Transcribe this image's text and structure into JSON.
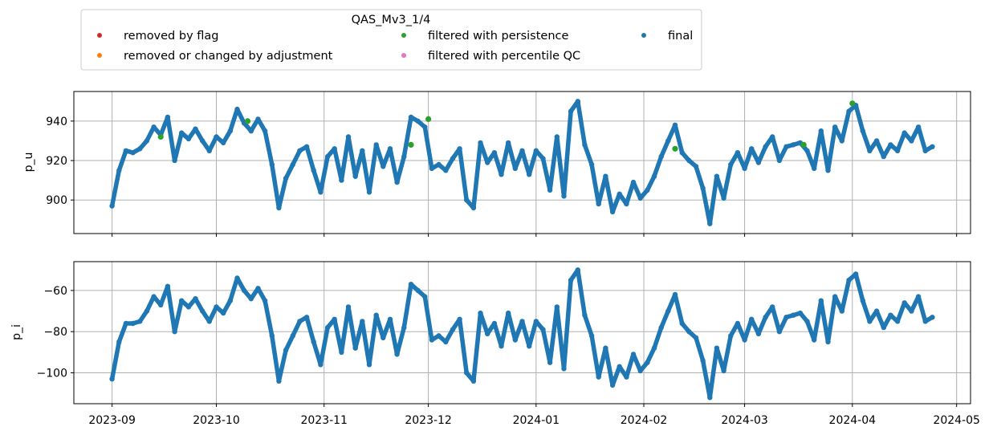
{
  "chart_data": {
    "type": "scatter",
    "legend": {
      "title": "QAS_Mv3_1/4",
      "placement": "top, above plots",
      "entries": [
        {
          "label": "removed by flag",
          "color": "#d62728"
        },
        {
          "label": "removed or changed by adjustment",
          "color": "#ff7f0e"
        },
        {
          "label": "filtered with persistence",
          "color": "#2ca02c"
        },
        {
          "label": "filtered with percentile QC",
          "color": "#e377c2"
        },
        {
          "label": "final",
          "color": "#1f77b4"
        }
      ]
    },
    "x_axis": {
      "type": "date",
      "range": [
        "2023-08-21",
        "2024-05-05"
      ],
      "ticks": [
        "2023-09",
        "2023-10",
        "2023-11",
        "2023-12",
        "2024-01",
        "2024-02",
        "2024-03",
        "2024-04",
        "2024-05"
      ],
      "tick_dates": [
        "2023-09-01",
        "2023-10-01",
        "2023-11-01",
        "2023-12-01",
        "2024-01-01",
        "2024-02-01",
        "2024-03-01",
        "2024-04-01",
        "2024-05-01"
      ],
      "grid": true,
      "shared": true
    },
    "panels": [
      {
        "ylabel": "p_u",
        "ylim": [
          883,
          955
        ],
        "yticks": [
          900,
          920,
          940
        ],
        "grid": true,
        "series": [
          {
            "name": "final",
            "color": "#1f77b4",
            "x": [
              "2023-09-01",
              "2023-09-03",
              "2023-09-05",
              "2023-09-07",
              "2023-09-09",
              "2023-09-11",
              "2023-09-13",
              "2023-09-15",
              "2023-09-17",
              "2023-09-19",
              "2023-09-21",
              "2023-09-23",
              "2023-09-25",
              "2023-09-27",
              "2023-09-29",
              "2023-10-01",
              "2023-10-03",
              "2023-10-05",
              "2023-10-07",
              "2023-10-09",
              "2023-10-11",
              "2023-10-13",
              "2023-10-15",
              "2023-10-17",
              "2023-10-19",
              "2023-10-21",
              "2023-10-23",
              "2023-10-25",
              "2023-10-27",
              "2023-10-29",
              "2023-10-31",
              "2023-11-02",
              "2023-11-04",
              "2023-11-06",
              "2023-11-08",
              "2023-11-10",
              "2023-11-12",
              "2023-11-14",
              "2023-11-16",
              "2023-11-18",
              "2023-11-20",
              "2023-11-22",
              "2023-11-24",
              "2023-11-26",
              "2023-11-28",
              "2023-11-30",
              "2023-12-02",
              "2023-12-04",
              "2023-12-06",
              "2023-12-08",
              "2023-12-10",
              "2023-12-12",
              "2023-12-14",
              "2023-12-16",
              "2023-12-18",
              "2023-12-20",
              "2023-12-22",
              "2023-12-24",
              "2023-12-26",
              "2023-12-28",
              "2023-12-30",
              "2024-01-01",
              "2024-01-03",
              "2024-01-05",
              "2024-01-07",
              "2024-01-09",
              "2024-01-11",
              "2024-01-13",
              "2024-01-15",
              "2024-01-17",
              "2024-01-19",
              "2024-01-21",
              "2024-01-23",
              "2024-01-25",
              "2024-01-27",
              "2024-01-29",
              "2024-01-31",
              "2024-02-02",
              "2024-02-04",
              "2024-02-06",
              "2024-02-08",
              "2024-02-10",
              "2024-02-12",
              "2024-02-14",
              "2024-02-16",
              "2024-02-18",
              "2024-02-20",
              "2024-02-22",
              "2024-02-24",
              "2024-02-26",
              "2024-02-28",
              "2024-03-01",
              "2024-03-03",
              "2024-03-05",
              "2024-03-07",
              "2024-03-09",
              "2024-03-11",
              "2024-03-13",
              "2024-03-15",
              "2024-03-17",
              "2024-03-19",
              "2024-03-21",
              "2024-03-23",
              "2024-03-25",
              "2024-03-27",
              "2024-03-29",
              "2024-03-31",
              "2024-04-02",
              "2024-04-04",
              "2024-04-06",
              "2024-04-08",
              "2024-04-10",
              "2024-04-12",
              "2024-04-14",
              "2024-04-16",
              "2024-04-18",
              "2024-04-20",
              "2024-04-22",
              "2024-04-24"
            ],
            "y": [
              897,
              915,
              925,
              924,
              926,
              930,
              937,
              933,
              942,
              920,
              934,
              931,
              936,
              930,
              925,
              932,
              929,
              935,
              946,
              939,
              935,
              941,
              935,
              918,
              896,
              911,
              918,
              925,
              927,
              915,
              904,
              922,
              926,
              910,
              932,
              912,
              925,
              904,
              928,
              917,
              926,
              909,
              922,
              942,
              940,
              937,
              916,
              918,
              915,
              921,
              926,
              900,
              896,
              929,
              919,
              924,
              913,
              929,
              916,
              925,
              913,
              925,
              921,
              905,
              932,
              902,
              945,
              950,
              928,
              918,
              898,
              912,
              894,
              903,
              898,
              909,
              901,
              905,
              912,
              922,
              930,
              938,
              924,
              920,
              917,
              906,
              888,
              912,
              901,
              918,
              924,
              916,
              926,
              919,
              927,
              932,
              920,
              927,
              928,
              929,
              925,
              916,
              935,
              915,
              937,
              930,
              945,
              948,
              935,
              925,
              930,
              922,
              928,
              925,
              934,
              930,
              937,
              925,
              927
            ]
          },
          {
            "name": "filtered with persistence",
            "color": "#2ca02c",
            "x": [
              "2023-09-15",
              "2023-10-10",
              "2023-11-26",
              "2023-12-01",
              "2024-02-10",
              "2024-03-18",
              "2024-04-01"
            ],
            "y": [
              932,
              940,
              928,
              941,
              926,
              928,
              949
            ]
          }
        ]
      },
      {
        "ylabel": "p_i",
        "ylim": [
          -115,
          -46
        ],
        "yticks": [
          -100,
          -80,
          -60
        ],
        "grid": true,
        "series": [
          {
            "name": "final",
            "color": "#1f77b4",
            "x": [
              "2023-09-01",
              "2023-09-03",
              "2023-09-05",
              "2023-09-07",
              "2023-09-09",
              "2023-09-11",
              "2023-09-13",
              "2023-09-15",
              "2023-09-17",
              "2023-09-19",
              "2023-09-21",
              "2023-09-23",
              "2023-09-25",
              "2023-09-27",
              "2023-09-29",
              "2023-10-01",
              "2023-10-03",
              "2023-10-05",
              "2023-10-07",
              "2023-10-09",
              "2023-10-11",
              "2023-10-13",
              "2023-10-15",
              "2023-10-17",
              "2023-10-19",
              "2023-10-21",
              "2023-10-23",
              "2023-10-25",
              "2023-10-27",
              "2023-10-29",
              "2023-10-31",
              "2023-11-02",
              "2023-11-04",
              "2023-11-06",
              "2023-11-08",
              "2023-11-10",
              "2023-11-12",
              "2023-11-14",
              "2023-11-16",
              "2023-11-18",
              "2023-11-20",
              "2023-11-22",
              "2023-11-24",
              "2023-11-26",
              "2023-11-28",
              "2023-11-30",
              "2023-12-02",
              "2023-12-04",
              "2023-12-06",
              "2023-12-08",
              "2023-12-10",
              "2023-12-12",
              "2023-12-14",
              "2023-12-16",
              "2023-12-18",
              "2023-12-20",
              "2023-12-22",
              "2023-12-24",
              "2023-12-26",
              "2023-12-28",
              "2023-12-30",
              "2024-01-01",
              "2024-01-03",
              "2024-01-05",
              "2024-01-07",
              "2024-01-09",
              "2024-01-11",
              "2024-01-13",
              "2024-01-15",
              "2024-01-17",
              "2024-01-19",
              "2024-01-21",
              "2024-01-23",
              "2024-01-25",
              "2024-01-27",
              "2024-01-29",
              "2024-01-31",
              "2024-02-02",
              "2024-02-04",
              "2024-02-06",
              "2024-02-08",
              "2024-02-10",
              "2024-02-12",
              "2024-02-14",
              "2024-02-16",
              "2024-02-18",
              "2024-02-20",
              "2024-02-22",
              "2024-02-24",
              "2024-02-26",
              "2024-02-28",
              "2024-03-01",
              "2024-03-03",
              "2024-03-05",
              "2024-03-07",
              "2024-03-09",
              "2024-03-11",
              "2024-03-13",
              "2024-03-15",
              "2024-03-17",
              "2024-03-19",
              "2024-03-21",
              "2024-03-23",
              "2024-03-25",
              "2024-03-27",
              "2024-03-29",
              "2024-03-31",
              "2024-04-02",
              "2024-04-04",
              "2024-04-06",
              "2024-04-08",
              "2024-04-10",
              "2024-04-12",
              "2024-04-14",
              "2024-04-16",
              "2024-04-18",
              "2024-04-20",
              "2024-04-22",
              "2024-04-24"
            ],
            "y": [
              -103,
              -85,
              -76,
              -76,
              -75,
              -70,
              -63,
              -67,
              -58,
              -80,
              -65,
              -68,
              -64,
              -70,
              -75,
              -68,
              -71,
              -65,
              -54,
              -60,
              -64,
              -59,
              -65,
              -82,
              -104,
              -89,
              -82,
              -75,
              -73,
              -85,
              -96,
              -78,
              -74,
              -90,
              -68,
              -88,
              -75,
              -96,
              -72,
              -83,
              -74,
              -91,
              -78,
              -57,
              -60,
              -63,
              -84,
              -82,
              -85,
              -79,
              -74,
              -100,
              -104,
              -71,
              -81,
              -76,
              -87,
              -71,
              -84,
              -75,
              -87,
              -75,
              -79,
              -95,
              -68,
              -98,
              -55,
              -50,
              -72,
              -82,
              -102,
              -88,
              -106,
              -97,
              -102,
              -91,
              -99,
              -95,
              -88,
              -78,
              -70,
              -62,
              -76,
              -80,
              -83,
              -94,
              -112,
              -88,
              -99,
              -82,
              -76,
              -84,
              -74,
              -81,
              -73,
              -68,
              -80,
              -73,
              -72,
              -71,
              -75,
              -84,
              -65,
              -85,
              -63,
              -70,
              -55,
              -52,
              -65,
              -75,
              -70,
              -78,
              -72,
              -75,
              -66,
              -70,
              -63,
              -75,
              -73
            ]
          }
        ]
      }
    ]
  }
}
